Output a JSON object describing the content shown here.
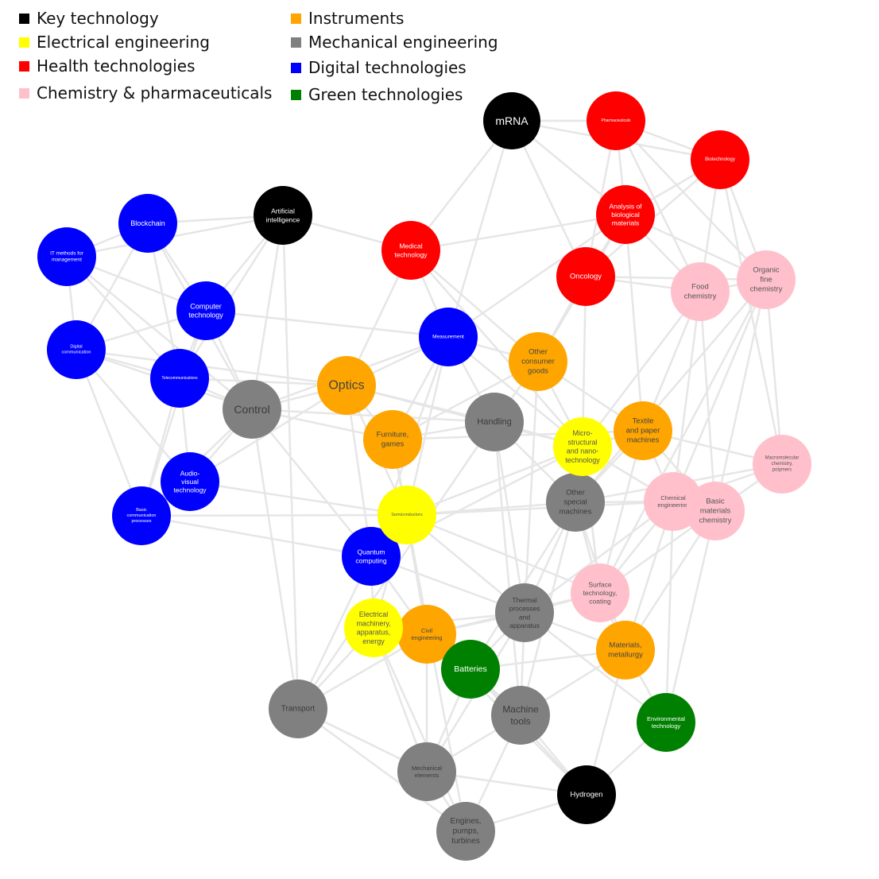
{
  "colors": {
    "edge": "#e6e6e6",
    "key": "#000000",
    "electrical": "#ffff00",
    "health": "#ff0000",
    "chemistry": "#ffc0cb",
    "instruments": "#ffa500",
    "mechanical": "#808080",
    "digital": "#0000ff",
    "green": "#008000"
  },
  "legend": [
    {
      "label": "Key technology",
      "category": "key"
    },
    {
      "label": "Electrical engineering",
      "category": "electrical"
    },
    {
      "label": "Health technologies",
      "category": "health"
    },
    {
      "label": "Chemistry & pharmaceuticals",
      "category": "chemistry"
    },
    {
      "label": "Instruments",
      "category": "instruments"
    },
    {
      "label": "Mechanical engineering",
      "category": "mechanical"
    },
    {
      "label": "Digital technologies",
      "category": "digital"
    },
    {
      "label": "Green technologies",
      "category": "green"
    }
  ],
  "nodes": [
    {
      "id": "mrna",
      "label": [
        "mRNA"
      ],
      "category": "key"
    },
    {
      "id": "ai",
      "label": [
        "Artificial",
        "intelligence"
      ],
      "category": "key"
    },
    {
      "id": "hydrogen",
      "label": [
        "Hydrogen"
      ],
      "category": "key"
    },
    {
      "id": "pharma",
      "label": [
        "Pharmaceuticals"
      ],
      "category": "health"
    },
    {
      "id": "biotech",
      "label": [
        "Biotechnology"
      ],
      "category": "health"
    },
    {
      "id": "analysis",
      "label": [
        "Analysis of",
        "biological",
        "materials"
      ],
      "category": "health"
    },
    {
      "id": "medtech",
      "label": [
        "Medical",
        "technology"
      ],
      "category": "health"
    },
    {
      "id": "oncology",
      "label": [
        "Oncology"
      ],
      "category": "health"
    },
    {
      "id": "food",
      "label": [
        "Food",
        "chemistry"
      ],
      "category": "chemistry"
    },
    {
      "id": "organic",
      "label": [
        "Organic",
        "fine",
        "chemistry"
      ],
      "category": "chemistry"
    },
    {
      "id": "macro",
      "label": [
        "Macromolecular",
        "chemistry,",
        "polymers"
      ],
      "category": "chemistry"
    },
    {
      "id": "chemeng",
      "label": [
        "Chemical",
        "engineering"
      ],
      "category": "chemistry"
    },
    {
      "id": "basicmat",
      "label": [
        "Basic",
        "materials",
        "chemistry"
      ],
      "category": "chemistry"
    },
    {
      "id": "surface",
      "label": [
        "Surface",
        "technology,",
        "coating"
      ],
      "category": "chemistry"
    },
    {
      "id": "blockchain",
      "label": [
        "Blockchain"
      ],
      "category": "digital"
    },
    {
      "id": "itmethods",
      "label": [
        "IT methods for",
        "management"
      ],
      "category": "digital"
    },
    {
      "id": "comptech",
      "label": [
        "Computer",
        "technology"
      ],
      "category": "digital"
    },
    {
      "id": "digcomm",
      "label": [
        "Digital",
        "communication"
      ],
      "category": "digital"
    },
    {
      "id": "telecom",
      "label": [
        "Telecommunications"
      ],
      "category": "digital"
    },
    {
      "id": "audiovisual",
      "label": [
        "Audio-",
        "visual",
        "technology"
      ],
      "category": "digital"
    },
    {
      "id": "basiccomm",
      "label": [
        "Basic",
        "communication",
        "processes"
      ],
      "category": "digital"
    },
    {
      "id": "measurement",
      "label": [
        "Measurement"
      ],
      "category": "digital"
    },
    {
      "id": "quantum",
      "label": [
        "Quantum",
        "computing"
      ],
      "category": "digital"
    },
    {
      "id": "control",
      "label": [
        "Control"
      ],
      "category": "mechanical"
    },
    {
      "id": "handling",
      "label": [
        "Handling"
      ],
      "category": "mechanical"
    },
    {
      "id": "otherspecial",
      "label": [
        "Other",
        "special",
        "machines"
      ],
      "category": "mechanical"
    },
    {
      "id": "thermal",
      "label": [
        "Thermal",
        "processes",
        "and",
        "apparatus"
      ],
      "category": "mechanical"
    },
    {
      "id": "transport",
      "label": [
        "Transport"
      ],
      "category": "mechanical"
    },
    {
      "id": "machinetools",
      "label": [
        "Machine",
        "tools"
      ],
      "category": "mechanical"
    },
    {
      "id": "mechelements",
      "label": [
        "Mechanical",
        "elements"
      ],
      "category": "mechanical"
    },
    {
      "id": "engines",
      "label": [
        "Engines,",
        "pumps,",
        "turbines"
      ],
      "category": "mechanical"
    },
    {
      "id": "optics",
      "label": [
        "Optics"
      ],
      "category": "instruments"
    },
    {
      "id": "otherconsumer",
      "label": [
        "Other",
        "consumer",
        "goods"
      ],
      "category": "instruments"
    },
    {
      "id": "furniture",
      "label": [
        "Furniture,",
        "games"
      ],
      "category": "instruments"
    },
    {
      "id": "textile",
      "label": [
        "Textile",
        "and paper",
        "machines"
      ],
      "category": "instruments"
    },
    {
      "id": "civil",
      "label": [
        "Civil",
        "engineering"
      ],
      "category": "instruments"
    },
    {
      "id": "materials",
      "label": [
        "Materials,",
        "metallurgy"
      ],
      "category": "instruments"
    },
    {
      "id": "micro",
      "label": [
        "Micro-",
        "structural",
        "and nano-",
        "technology"
      ],
      "category": "electrical"
    },
    {
      "id": "semis",
      "label": [
        "Semiconductors"
      ],
      "category": "electrical"
    },
    {
      "id": "elecmach",
      "label": [
        "Electrical",
        "machinery,",
        "apparatus,",
        "energy"
      ],
      "category": "electrical"
    },
    {
      "id": "batteries",
      "label": [
        "Batteries"
      ],
      "category": "green"
    },
    {
      "id": "envtech",
      "label": [
        "Environmental",
        "technology"
      ],
      "category": "green"
    }
  ],
  "edges": [
    [
      "mrna",
      "pharma"
    ],
    [
      "mrna",
      "biotech"
    ],
    [
      "mrna",
      "analysis"
    ],
    [
      "mrna",
      "medtech"
    ],
    [
      "mrna",
      "oncology"
    ],
    [
      "mrna",
      "measurement"
    ],
    [
      "pharma",
      "biotech"
    ],
    [
      "pharma",
      "analysis"
    ],
    [
      "pharma",
      "oncology"
    ],
    [
      "pharma",
      "food"
    ],
    [
      "pharma",
      "organic"
    ],
    [
      "biotech",
      "analysis"
    ],
    [
      "biotech",
      "food"
    ],
    [
      "biotech",
      "organic"
    ],
    [
      "biotech",
      "macro"
    ],
    [
      "biotech",
      "oncology"
    ],
    [
      "analysis",
      "oncology"
    ],
    [
      "analysis",
      "medtech"
    ],
    [
      "analysis",
      "measurement"
    ],
    [
      "analysis",
      "food"
    ],
    [
      "analysis",
      "organic"
    ],
    [
      "analysis",
      "textile"
    ],
    [
      "analysis",
      "otherconsumer"
    ],
    [
      "oncology",
      "food"
    ],
    [
      "oncology",
      "organic"
    ],
    [
      "oncology",
      "micro"
    ],
    [
      "oncology",
      "otherconsumer"
    ],
    [
      "food",
      "organic"
    ],
    [
      "food",
      "chemeng"
    ],
    [
      "food",
      "textile"
    ],
    [
      "food",
      "basicmat"
    ],
    [
      "food",
      "micro"
    ],
    [
      "organic",
      "macro"
    ],
    [
      "organic",
      "basicmat"
    ],
    [
      "organic",
      "chemeng"
    ],
    [
      "organic",
      "surface"
    ],
    [
      "organic",
      "otherspecial"
    ],
    [
      "macro",
      "basicmat"
    ],
    [
      "macro",
      "chemeng"
    ],
    [
      "macro",
      "textile"
    ],
    [
      "macro",
      "otherspecial"
    ],
    [
      "chemeng",
      "basicmat"
    ],
    [
      "chemeng",
      "otherspecial"
    ],
    [
      "chemeng",
      "surface"
    ],
    [
      "chemeng",
      "materials"
    ],
    [
      "chemeng",
      "envtech"
    ],
    [
      "chemeng",
      "semis"
    ],
    [
      "chemeng",
      "thermal"
    ],
    [
      "basicmat",
      "surface"
    ],
    [
      "basicmat",
      "materials"
    ],
    [
      "basicmat",
      "envtech"
    ],
    [
      "basicmat",
      "textile"
    ],
    [
      "surface",
      "materials"
    ],
    [
      "surface",
      "thermal"
    ],
    [
      "surface",
      "micro"
    ],
    [
      "surface",
      "otherspecial"
    ],
    [
      "surface",
      "civil"
    ],
    [
      "ai",
      "blockchain"
    ],
    [
      "ai",
      "itmethods"
    ],
    [
      "ai",
      "comptech"
    ],
    [
      "ai",
      "medtech"
    ],
    [
      "ai",
      "control"
    ],
    [
      "ai",
      "telecom"
    ],
    [
      "ai",
      "transport"
    ],
    [
      "blockchain",
      "itmethods"
    ],
    [
      "blockchain",
      "comptech"
    ],
    [
      "blockchain",
      "digcomm"
    ],
    [
      "blockchain",
      "telecom"
    ],
    [
      "blockchain",
      "control"
    ],
    [
      "itmethods",
      "comptech"
    ],
    [
      "itmethods",
      "digcomm"
    ],
    [
      "itmethods",
      "telecom"
    ],
    [
      "itmethods",
      "control"
    ],
    [
      "comptech",
      "digcomm"
    ],
    [
      "comptech",
      "telecom"
    ],
    [
      "comptech",
      "control"
    ],
    [
      "comptech",
      "basiccomm"
    ],
    [
      "comptech",
      "measurement"
    ],
    [
      "digcomm",
      "telecom"
    ],
    [
      "digcomm",
      "audiovisual"
    ],
    [
      "digcomm",
      "basiccomm"
    ],
    [
      "digcomm",
      "control"
    ],
    [
      "digcomm",
      "optics"
    ],
    [
      "telecom",
      "audiovisual"
    ],
    [
      "telecom",
      "basiccomm"
    ],
    [
      "telecom",
      "control"
    ],
    [
      "telecom",
      "optics"
    ],
    [
      "audiovisual",
      "basiccomm"
    ],
    [
      "audiovisual",
      "control"
    ],
    [
      "audiovisual",
      "optics"
    ],
    [
      "audiovisual",
      "semis"
    ],
    [
      "basiccomm",
      "control"
    ],
    [
      "basiccomm",
      "semis"
    ],
    [
      "basiccomm",
      "quantum"
    ],
    [
      "control",
      "optics"
    ],
    [
      "control",
      "measurement"
    ],
    [
      "control",
      "quantum"
    ],
    [
      "control",
      "handling"
    ],
    [
      "control",
      "transport"
    ],
    [
      "control",
      "furniture"
    ],
    [
      "medtech",
      "measurement"
    ],
    [
      "medtech",
      "optics"
    ],
    [
      "medtech",
      "otherconsumer"
    ],
    [
      "medtech",
      "micro"
    ],
    [
      "measurement",
      "optics"
    ],
    [
      "measurement",
      "handling"
    ],
    [
      "measurement",
      "otherconsumer"
    ],
    [
      "measurement",
      "furniture"
    ],
    [
      "measurement",
      "semis"
    ],
    [
      "measurement",
      "quantum"
    ],
    [
      "measurement",
      "micro"
    ],
    [
      "optics",
      "furniture"
    ],
    [
      "optics",
      "semis"
    ],
    [
      "optics",
      "handling"
    ],
    [
      "optics",
      "quantum"
    ],
    [
      "optics",
      "micro"
    ],
    [
      "otherconsumer",
      "handling"
    ],
    [
      "otherconsumer",
      "micro"
    ],
    [
      "otherconsumer",
      "textile"
    ],
    [
      "otherconsumer",
      "furniture"
    ],
    [
      "otherconsumer",
      "thermal"
    ],
    [
      "furniture",
      "handling"
    ],
    [
      "furniture",
      "semis"
    ],
    [
      "furniture",
      "textile"
    ],
    [
      "furniture",
      "civil"
    ],
    [
      "furniture",
      "engines"
    ],
    [
      "handling",
      "micro"
    ],
    [
      "handling",
      "otherspecial"
    ],
    [
      "handling",
      "machinetools"
    ],
    [
      "handling",
      "thermal"
    ],
    [
      "handling",
      "transport"
    ],
    [
      "micro",
      "semis"
    ],
    [
      "micro",
      "otherspecial"
    ],
    [
      "micro",
      "textile"
    ],
    [
      "micro",
      "surface"
    ],
    [
      "micro",
      "quantum"
    ],
    [
      "micro",
      "chemeng"
    ],
    [
      "textile",
      "otherspecial"
    ],
    [
      "textile",
      "chemeng"
    ],
    [
      "textile",
      "surface"
    ],
    [
      "semis",
      "quantum"
    ],
    [
      "semis",
      "otherspecial"
    ],
    [
      "semis",
      "elecmach"
    ],
    [
      "semis",
      "thermal"
    ],
    [
      "semis",
      "surface"
    ],
    [
      "quantum",
      "elecmach"
    ],
    [
      "quantum",
      "thermal"
    ],
    [
      "quantum",
      "civil"
    ],
    [
      "quantum",
      "transport"
    ],
    [
      "otherspecial",
      "thermal"
    ],
    [
      "otherspecial",
      "machinetools"
    ],
    [
      "otherspecial",
      "materials"
    ],
    [
      "otherspecial",
      "surface"
    ],
    [
      "otherspecial",
      "batteries"
    ],
    [
      "thermal",
      "civil"
    ],
    [
      "thermal",
      "batteries"
    ],
    [
      "thermal",
      "machinetools"
    ],
    [
      "thermal",
      "materials"
    ],
    [
      "thermal",
      "mechelements"
    ],
    [
      "thermal",
      "elecmach"
    ],
    [
      "elecmach",
      "civil"
    ],
    [
      "elecmach",
      "batteries"
    ],
    [
      "elecmach",
      "transport"
    ],
    [
      "elecmach",
      "mechelements"
    ],
    [
      "elecmach",
      "engines"
    ],
    [
      "civil",
      "batteries"
    ],
    [
      "civil",
      "transport"
    ],
    [
      "civil",
      "mechelements"
    ],
    [
      "civil",
      "machinetools"
    ],
    [
      "civil",
      "hydrogen"
    ],
    [
      "batteries",
      "machinetools"
    ],
    [
      "batteries",
      "materials"
    ],
    [
      "batteries",
      "hydrogen"
    ],
    [
      "batteries",
      "mechelements"
    ],
    [
      "materials",
      "machinetools"
    ],
    [
      "materials",
      "envtech"
    ],
    [
      "materials",
      "hydrogen"
    ],
    [
      "machinetools",
      "mechelements"
    ],
    [
      "machinetools",
      "engines"
    ],
    [
      "machinetools",
      "hydrogen"
    ],
    [
      "transport",
      "mechelements"
    ],
    [
      "transport",
      "engines"
    ],
    [
      "mechelements",
      "engines"
    ],
    [
      "mechelements",
      "hydrogen"
    ],
    [
      "engines",
      "hydrogen"
    ],
    [
      "envtech",
      "hydrogen"
    ],
    [
      "envtech",
      "thermal"
    ]
  ]
}
